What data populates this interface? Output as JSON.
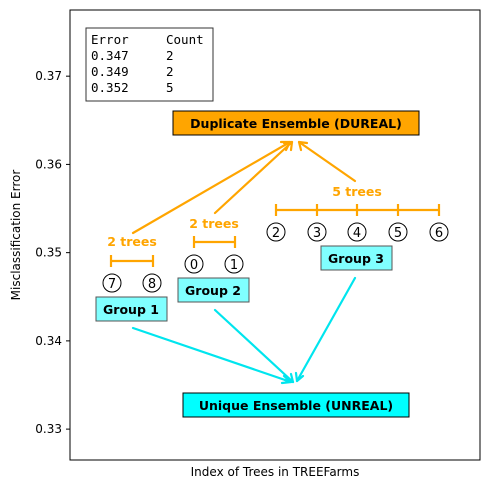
{
  "chart_data": {
    "type": "scatter",
    "xlabel": "Index of Trees in TREEFarms",
    "ylabel": "Misclassification Error",
    "x_ticks": "hidden",
    "ylim": [
      0.3265,
      0.3775
    ],
    "yticks": [
      "0.33",
      "0.34",
      "0.35",
      "0.36",
      "0.37"
    ],
    "table": {
      "headers": [
        "Error",
        "Count"
      ],
      "rows": [
        [
          "0.347",
          "2"
        ],
        [
          "0.349",
          "2"
        ],
        [
          "0.352",
          "5"
        ]
      ]
    },
    "boxes": {
      "dureal": "Duplicate Ensemble (DUREAL)",
      "unreal": "Unique Ensemble (UNREAL)"
    },
    "groups": [
      {
        "label": "Group 1",
        "count_label": "2 trees",
        "error": 0.347,
        "trees": [
          "7",
          "8"
        ]
      },
      {
        "label": "Group 2",
        "count_label": "2 trees",
        "error": 0.349,
        "trees": [
          "0",
          "1"
        ]
      },
      {
        "label": "Group 3",
        "count_label": "5 trees",
        "error": 0.352,
        "trees": [
          "2",
          "3",
          "4",
          "5",
          "6"
        ]
      }
    ],
    "colors": {
      "orange": "#FFA500",
      "cyan": "#00FFFF",
      "light_cyan": "#80FFFF",
      "arrow_cyan": "#00E5EE",
      "arrow_orange": "#FFA500"
    }
  }
}
